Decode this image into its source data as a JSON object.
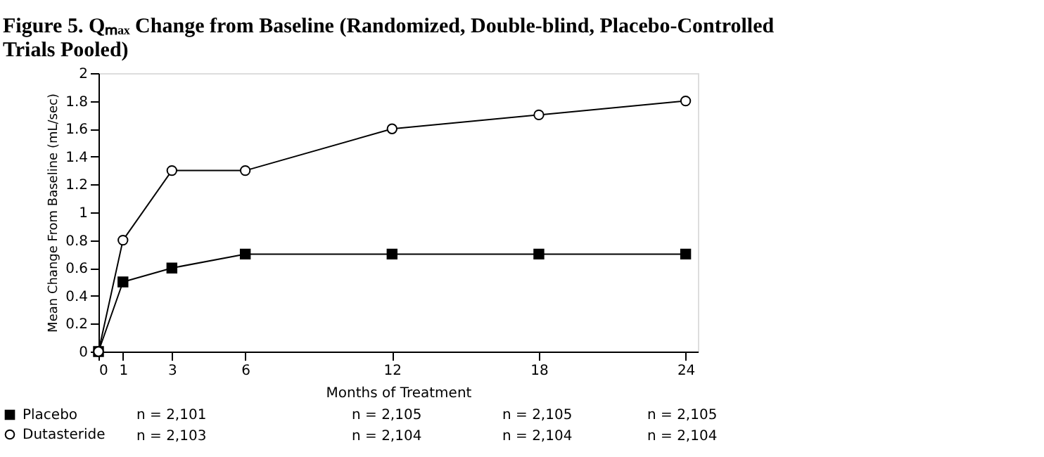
{
  "chart_data": {
    "type": "line",
    "title": "Figure 5. Qₘₐₓ Change from Baseline (Randomized, Double-blind, Placebo-Controlled Trials Pooled)",
    "xlabel": "Months of Treatment",
    "ylabel": "Mean Change From Baseline (mL/sec)",
    "x": [
      0,
      1,
      3,
      6,
      12,
      18,
      24
    ],
    "series": [
      {
        "name": "Placebo",
        "color": "#000000",
        "marker": "square",
        "values": [
          0,
          0.5,
          0.6,
          0.7,
          0.7,
          0.7,
          0.7
        ]
      },
      {
        "name": "Dutasteride",
        "color": "#000000",
        "marker": "circle",
        "values": [
          0,
          0.8,
          1.3,
          1.3,
          1.6,
          1.7,
          1.8
        ]
      }
    ],
    "xlim": [
      0,
      24.5
    ],
    "xticks": [
      0,
      1,
      3,
      6,
      12,
      18,
      24
    ],
    "ylim": [
      0,
      2
    ],
    "yticks": [
      0,
      0.2,
      0.4,
      0.6,
      0.8,
      1,
      1.2,
      1.4,
      1.6,
      1.8,
      2
    ],
    "grid": false,
    "legend": "bottom left",
    "line_style": "solid",
    "annotations": [
      "n = 2,101",
      "n = 2,105",
      "n = 2,105",
      "n = 2,105",
      "n = 2,103",
      "n = 2,104",
      "n = 2,104",
      "n = 2,104"
    ]
  }
}
